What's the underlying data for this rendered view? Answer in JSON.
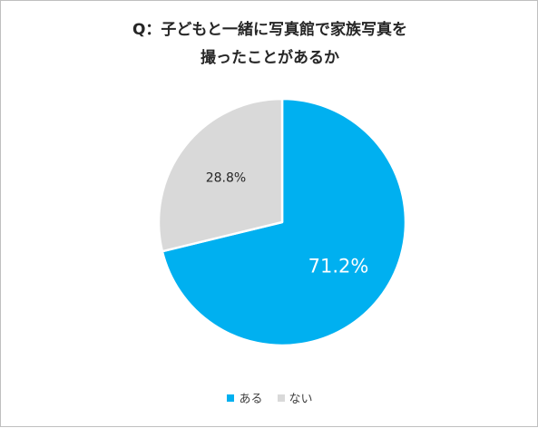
{
  "chart_data": {
    "type": "pie",
    "title_lines": [
      "Q：子どもと一緒に写真館で家族写真を",
      "撮ったことがあるか"
    ],
    "categories": [
      "ある",
      "ない"
    ],
    "values": [
      71.2,
      28.8
    ],
    "data_labels": [
      "71.2%",
      "28.8%"
    ],
    "colors": [
      "#00b0f0",
      "#d9d9d9"
    ],
    "label_colors": [
      "#ffffff",
      "#262626"
    ],
    "start_angle_deg": 0,
    "direction": "clockwise",
    "legend_position": "bottom"
  }
}
